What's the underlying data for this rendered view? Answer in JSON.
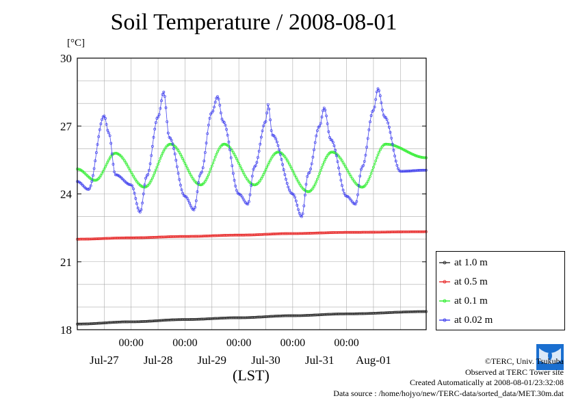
{
  "title": "Soil Temperature / 2008-08-01",
  "unit_label": "[°C]",
  "xlabel": "(LST)",
  "chart_data": {
    "type": "line",
    "title": "Soil Temperature / 2008-08-01",
    "ylabel": "[°C]",
    "xlabel": "(LST)",
    "ylim": [
      18,
      30
    ],
    "yticks": [
      "18",
      "21",
      "24",
      "27",
      "30"
    ],
    "xlim_days": [
      "2008-07-26 12:00",
      "2008-08-01 23:30"
    ],
    "x_time_ticks": [
      "00:00",
      "00:00",
      "00:00",
      "00:00",
      "00:00"
    ],
    "x_date_labels": [
      "Jul-27",
      "Jul-28",
      "Jul-29",
      "Jul-30",
      "Jul-31",
      "Aug-01"
    ],
    "grid": true,
    "legend_position": "right",
    "series": [
      {
        "name": "at 1.0 m",
        "color": "#333333",
        "points": [
          [
            "2008-07-26 12:00",
            18.25
          ],
          [
            "2008-07-27 12:00",
            18.35
          ],
          [
            "2008-07-28 12:00",
            18.45
          ],
          [
            "2008-07-29 12:00",
            18.53
          ],
          [
            "2008-07-30 12:00",
            18.62
          ],
          [
            "2008-07-31 12:00",
            18.7
          ],
          [
            "2008-08-01 23:30",
            18.8
          ]
        ]
      },
      {
        "name": "at 0.5 m",
        "color": "#e83030",
        "points": [
          [
            "2008-07-26 12:00",
            22.0
          ],
          [
            "2008-07-27 12:00",
            22.06
          ],
          [
            "2008-07-28 12:00",
            22.12
          ],
          [
            "2008-07-29 12:00",
            22.18
          ],
          [
            "2008-07-30 12:00",
            22.25
          ],
          [
            "2008-07-31 12:00",
            22.3
          ],
          [
            "2008-08-01 23:30",
            22.33
          ]
        ]
      },
      {
        "name": "at 0.1 m",
        "color": "#33ee33",
        "points": [
          [
            "2008-07-26 12:00",
            25.1
          ],
          [
            "2008-07-26 20:00",
            24.6
          ],
          [
            "2008-07-27 05:00",
            25.8
          ],
          [
            "2008-07-27 18:00",
            24.3
          ],
          [
            "2008-07-28 05:30",
            26.2
          ],
          [
            "2008-07-28 19:00",
            24.4
          ],
          [
            "2008-07-29 05:30",
            26.2
          ],
          [
            "2008-07-29 19:00",
            24.4
          ],
          [
            "2008-07-30 05:30",
            25.85
          ],
          [
            "2008-07-30 19:00",
            24.1
          ],
          [
            "2008-07-31 05:30",
            25.85
          ],
          [
            "2008-07-31 19:00",
            24.3
          ],
          [
            "2008-08-01 05:30",
            26.2
          ],
          [
            "2008-08-01 23:30",
            25.6
          ]
        ]
      },
      {
        "name": "at 0.02 m",
        "color": "#4444ee",
        "points": [
          [
            "2008-07-26 12:00",
            24.55
          ],
          [
            "2008-07-26 17:00",
            24.2
          ],
          [
            "2008-07-27 00:00",
            27.45
          ],
          [
            "2008-07-27 02:00",
            26.7
          ],
          [
            "2008-07-27 05:00",
            24.85
          ],
          [
            "2008-07-27 12:00",
            24.4
          ],
          [
            "2008-07-27 16:00",
            23.2
          ],
          [
            "2008-07-27 19:00",
            24.8
          ],
          [
            "2008-07-28 00:00",
            27.4
          ],
          [
            "2008-07-28 02:30",
            28.5
          ],
          [
            "2008-07-28 05:00",
            26.5
          ],
          [
            "2008-07-28 12:00",
            23.9
          ],
          [
            "2008-07-28 16:00",
            23.3
          ],
          [
            "2008-07-28 19:00",
            24.9
          ],
          [
            "2008-07-29 00:00",
            27.6
          ],
          [
            "2008-07-29 02:30",
            28.3
          ],
          [
            "2008-07-29 05:00",
            27.2
          ],
          [
            "2008-07-29 12:00",
            24.0
          ],
          [
            "2008-07-29 16:00",
            23.55
          ],
          [
            "2008-07-29 19:00",
            25.2
          ],
          [
            "2008-07-30 00:00",
            27.2
          ],
          [
            "2008-07-30 01:00",
            27.95
          ],
          [
            "2008-07-30 03:00",
            26.6
          ],
          [
            "2008-07-30 12:00",
            24.0
          ],
          [
            "2008-07-30 16:00",
            23.0
          ],
          [
            "2008-07-30 19:00",
            24.9
          ],
          [
            "2008-07-31 00:00",
            27.0
          ],
          [
            "2008-07-31 02:00",
            27.8
          ],
          [
            "2008-07-31 05:00",
            26.4
          ],
          [
            "2008-07-31 12:00",
            23.9
          ],
          [
            "2008-07-31 16:00",
            23.55
          ],
          [
            "2008-07-31 19:00",
            25.2
          ],
          [
            "2008-08-01 00:00",
            27.7
          ],
          [
            "2008-08-01 02:00",
            28.65
          ],
          [
            "2008-08-01 05:00",
            27.4
          ],
          [
            "2008-08-01 12:00",
            25.0
          ],
          [
            "2008-08-01 23:30",
            25.05
          ]
        ]
      }
    ]
  },
  "legend": {
    "items": [
      {
        "label": "at 1.0 m",
        "color": "#333333"
      },
      {
        "label": "at 0.5 m",
        "color": "#e83030"
      },
      {
        "label": "at 0.1 m",
        "color": "#33ee33"
      },
      {
        "label": "at 0.02 m",
        "color": "#4444ee"
      }
    ]
  },
  "credits": {
    "copyright": "©TERC, Univ. Tsukuba",
    "observed": "Observed at TERC Tower site",
    "created": "Created Automatically at 2008-08-01/23:32:08",
    "source": "Data source : /home/hojyo/new/TERC-data/sorted_data/MET.30m.dat"
  },
  "logo_text": "TERC"
}
